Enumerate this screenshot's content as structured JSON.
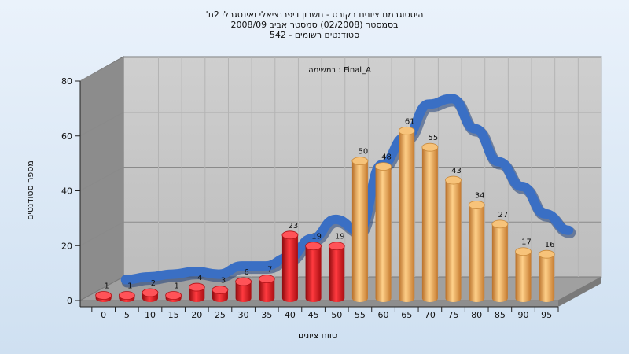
{
  "colors": {
    "background": "#dce8f5",
    "back_wall": "#c6c6c6",
    "side_wall": "#8a8a8a",
    "floor": "#9c9c9c",
    "bar_fail": "#e0141a",
    "bar_pass": "#f0a84a",
    "wave": "#3a6fc4",
    "grid": "#8a8a8a"
  },
  "chart_data": {
    "type": "bar",
    "title": [
      "היסטוגרמת ציונים בקורס - חשבון דיפרנציאלי ואינטגרלי 2ת'",
      "בסמסטר  (02/2008)  סמסטר אביב 2008/09",
      "סטודנטים רשומים - 542"
    ],
    "annotation": "במשימה : Final_A",
    "xlabel": "טווח ציונים",
    "ylabel": "מספר סטודנטים",
    "ylim": [
      0,
      80
    ],
    "yticks": [
      0,
      20,
      40,
      60,
      80
    ],
    "grid": true,
    "categories": [
      "0",
      "5",
      "10",
      "15",
      "20",
      "25",
      "30",
      "35",
      "40",
      "45",
      "50",
      "55",
      "60",
      "65",
      "70",
      "75",
      "80",
      "85",
      "90",
      "95"
    ],
    "values": [
      1,
      1,
      2,
      1,
      4,
      3,
      6,
      7,
      23,
      19,
      19,
      50,
      48,
      61,
      55,
      43,
      34,
      27,
      17,
      16
    ],
    "bar_colors": [
      "fail",
      "fail",
      "fail",
      "fail",
      "fail",
      "fail",
      "fail",
      "fail",
      "fail",
      "fail",
      "fail",
      "pass",
      "pass",
      "pass",
      "pass",
      "pass",
      "pass",
      "pass",
      "pass",
      "pass"
    ],
    "wave_values": [
      3,
      4,
      5,
      6,
      5,
      8,
      8,
      11,
      18,
      25,
      21,
      45,
      55,
      67,
      69,
      58,
      46,
      37,
      27,
      21
    ]
  }
}
